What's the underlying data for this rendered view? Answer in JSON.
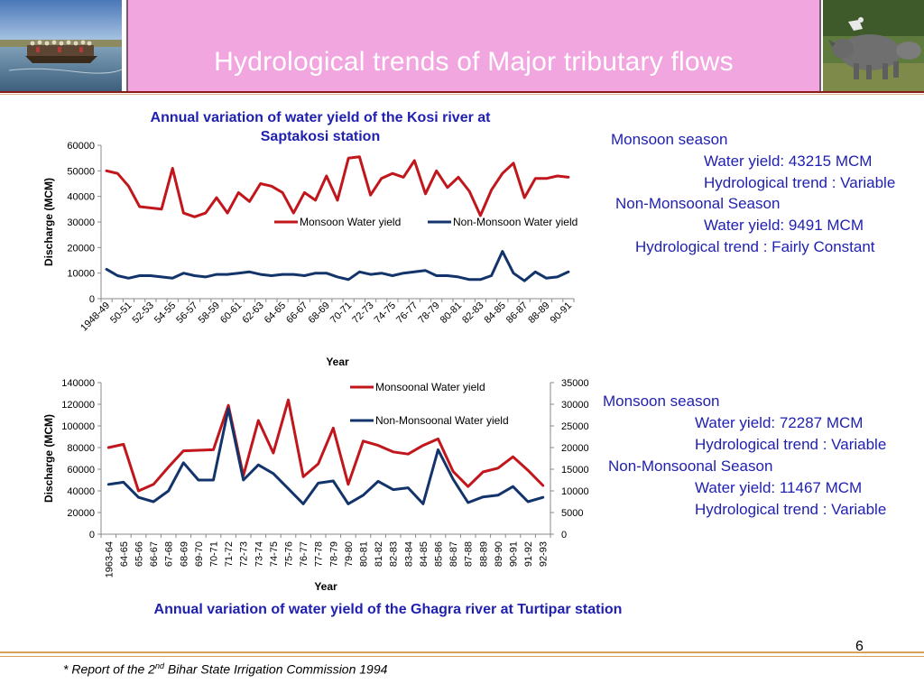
{
  "slide": {
    "title": "Hydrological trends of Major tributary flows",
    "page_number": "6",
    "footnote_prefix": "* Report of the 2",
    "footnote_sup": "nd",
    "footnote_suffix": " Bihar State Irrigation Commission 1994"
  },
  "kosi_info": {
    "l1": "Monsoon season",
    "l2": "Water yield: 43215 MCM",
    "l3": "Hydrological trend : Variable",
    "l4": "Non-Monsoonal Season",
    "l5": "Water yield: 9491 MCM",
    "l6": "Hydrological trend : Fairly Constant"
  },
  "ghagra_info": {
    "l1": "Monsoon season",
    "l2": "Water yield: 72287 MCM",
    "l3": "Hydrological trend : Variable",
    "l4": "Non-Monsoonal Season",
    "l5": "Water yield: 11467 MCM",
    "l6": "Hydrological trend : Variable"
  },
  "colors": {
    "monsoon": "#c0161c",
    "non_monsoon": "#12346b",
    "title_bar": "#f1a6e0",
    "info_text": "#1f1fb0"
  },
  "chart_data": [
    {
      "type": "line",
      "title": "Annual variation of water yield of the Kosi river at Saptakosi station",
      "xlabel": "Year",
      "ylabel": "Discharge (MCM)",
      "ylim": [
        0,
        60000
      ],
      "yticks": [
        0,
        10000,
        20000,
        30000,
        40000,
        50000,
        60000
      ],
      "legend_position": "middle-right",
      "x": [
        "1948-49",
        "49-50",
        "50-51",
        "51-52",
        "52-53",
        "53-54",
        "54-55",
        "55-56",
        "56-57",
        "57-58",
        "58-59",
        "59-60",
        "60-61",
        "61-62",
        "62-63",
        "63-64",
        "64-65",
        "65-66",
        "66-67",
        "67-68",
        "68-69",
        "69-70",
        "70-71",
        "71-72",
        "72-73",
        "73-74",
        "74-75",
        "75-76",
        "76-77",
        "77-78",
        "78-79",
        "79-80",
        "80-81",
        "81-82",
        "82-83",
        "83-84",
        "84-85",
        "85-86",
        "86-87",
        "87-88",
        "88-89",
        "89-90",
        "90-91"
      ],
      "xtick_labels": [
        "1948-49",
        "",
        "50-51",
        "",
        "52-53",
        "",
        "54-55",
        "",
        "56-57",
        "",
        "58-59",
        "",
        "60-61",
        "",
        "62-63",
        "",
        "64-65",
        "",
        "66-67",
        "",
        "68-69",
        "",
        "70-71",
        "",
        "72-73",
        "",
        "74-75",
        "",
        "76-77",
        "",
        "78-79",
        "",
        "80-81",
        "",
        "82-83",
        "",
        "84-85",
        "",
        "86-87",
        "",
        "88-89",
        "",
        "90-91"
      ],
      "series": [
        {
          "name": "Monsoon Water yield",
          "color": "#c0161c",
          "values": [
            50000,
            49000,
            44000,
            36000,
            35500,
            35000,
            51000,
            33500,
            32000,
            33500,
            39500,
            33500,
            41500,
            38000,
            45000,
            44000,
            41500,
            33500,
            41500,
            38500,
            48000,
            38500,
            55000,
            55500,
            40500,
            47000,
            49000,
            47500,
            54000,
            41000,
            50000,
            43500,
            47500,
            42000,
            32500,
            42500,
            49000,
            53000,
            39500,
            47000,
            47000,
            48000,
            47500
          ]
        },
        {
          "name": "Non-Monsoon Water yield",
          "color": "#12346b",
          "values": [
            11500,
            9000,
            8000,
            9000,
            9000,
            8500,
            8000,
            10000,
            9000,
            8500,
            9500,
            9500,
            10000,
            10500,
            9500,
            9000,
            9500,
            9500,
            9000,
            10000,
            10000,
            8500,
            7500,
            10500,
            9500,
            10000,
            9000,
            10000,
            10500,
            11000,
            9000,
            9000,
            8500,
            7500,
            7500,
            9000,
            18500,
            10000,
            7000,
            10500,
            8000,
            8500,
            10500
          ]
        }
      ]
    },
    {
      "type": "line",
      "title": "Annual variation of water yield of the Ghagra river at Turtipar station",
      "xlabel": "Year",
      "ylabel": "Discharge (MCM)",
      "ylim": [
        0,
        140000
      ],
      "yticks": [
        0,
        20000,
        40000,
        60000,
        80000,
        100000,
        120000,
        140000
      ],
      "y2lim": [
        0,
        35000
      ],
      "y2ticks": [
        0,
        5000,
        10000,
        15000,
        20000,
        25000,
        30000,
        35000
      ],
      "legend_position": "top-right",
      "x": [
        "1963-64",
        "64-65",
        "65-66",
        "66-67",
        "67-68",
        "68-69",
        "69-70",
        "70-71",
        "71-72",
        "72-73",
        "73-74",
        "74-75",
        "75-76",
        "76-77",
        "77-78",
        "78-79",
        "79-80",
        "80-81",
        "81-82",
        "82-83",
        "83-84",
        "84-85",
        "85-86",
        "86-87",
        "87-88",
        "88-89",
        "89-90",
        "90-91",
        "91-92",
        "92-93"
      ],
      "series": [
        {
          "name": "Monsoonal Water yield",
          "color": "#c0161c",
          "axis": "left",
          "values": [
            80000,
            83000,
            40000,
            46000,
            62000,
            77000,
            77500,
            78000,
            119000,
            54000,
            105000,
            75000,
            124000,
            53000,
            65000,
            98000,
            46000,
            86000,
            82000,
            76000,
            74000,
            82000,
            88000,
            58000,
            44000,
            57500,
            61000,
            71500,
            59000,
            45000
          ]
        },
        {
          "name": "Non-Monsoonal Water yield",
          "color": "#12346b",
          "axis": "right",
          "values": [
            11500,
            12000,
            8500,
            7500,
            10000,
            16500,
            12500,
            12500,
            29000,
            12500,
            16000,
            14000,
            10500,
            7000,
            11800,
            12300,
            7000,
            9000,
            12200,
            10300,
            10700,
            7000,
            19500,
            12700,
            7300,
            8600,
            9000,
            11000,
            7500,
            8500
          ]
        }
      ]
    }
  ]
}
